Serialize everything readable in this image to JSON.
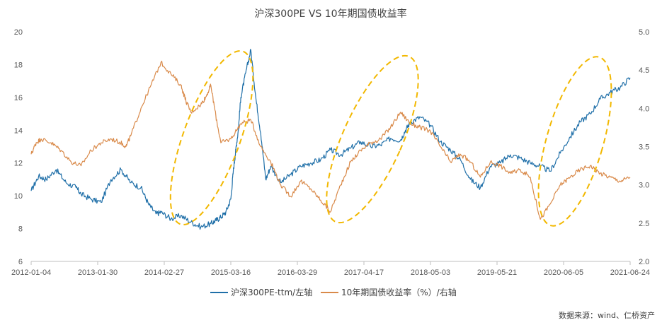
{
  "chart_data": {
    "type": "line",
    "title": "沪深300PE VS 10年期国债收益率",
    "source": "数据来源：wind、仁桥资产",
    "x_tick_labels": [
      "2012-01-04",
      "2013-01-30",
      "2014-02-27",
      "2015-03-16",
      "2016-03-29",
      "2017-04-17",
      "2018-05-03",
      "2019-05-21",
      "2020-06-05",
      "2021-06-24"
    ],
    "y_left": {
      "ticks": [
        6,
        8,
        10,
        12,
        14,
        16,
        18,
        20
      ],
      "ylim": [
        6,
        20
      ]
    },
    "y_right": {
      "ticks": [
        "2.0",
        "2.5",
        "3.0",
        "3.5",
        "4.0",
        "4.5",
        "5.0"
      ],
      "ylim": [
        2.0,
        5.0
      ]
    },
    "series": [
      {
        "name": "沪深300PE-ttm/左轴",
        "axis": "left",
        "color": "#1f6fa8",
        "x": [
          0.0,
          0.15,
          0.3,
          0.5,
          0.7,
          0.9,
          1.0,
          1.2,
          1.4,
          1.6,
          1.8,
          2.0,
          2.2,
          2.35,
          2.5,
          2.6,
          2.8,
          3.0,
          3.2,
          3.4,
          3.6,
          3.7,
          3.8,
          3.9,
          4.0,
          4.05,
          4.1,
          4.15,
          4.2,
          4.3,
          4.4,
          4.5,
          4.6,
          4.7,
          4.8,
          5.0,
          5.2,
          5.4,
          5.6,
          5.8,
          6.0,
          6.2,
          6.4,
          6.6,
          6.8,
          7.0,
          7.2,
          7.4,
          7.5,
          7.6,
          7.8,
          8.0,
          8.2,
          8.4,
          8.6,
          8.8,
          9.0,
          9.2,
          9.4,
          9.6,
          9.8,
          10.0,
          10.2,
          10.4,
          10.6,
          10.8,
          11.0,
          11.2,
          11.4,
          11.6,
          11.8,
          12.0
        ],
        "values": [
          10.3,
          11.2,
          11.0,
          11.6,
          10.8,
          10.5,
          10.1,
          9.8,
          9.6,
          11.0,
          11.6,
          10.8,
          10.5,
          9.5,
          8.9,
          9.0,
          8.6,
          8.8,
          8.4,
          8.1,
          8.3,
          8.5,
          8.7,
          9.0,
          9.8,
          11.5,
          12.8,
          14.0,
          16.0,
          17.5,
          18.9,
          16.0,
          13.8,
          11.0,
          11.8,
          10.8,
          11.3,
          11.8,
          12.0,
          12.2,
          12.8,
          12.5,
          12.9,
          13.3,
          13.0,
          13.1,
          13.5,
          13.4,
          14.0,
          14.5,
          14.8,
          14.3,
          13.3,
          12.8,
          12.2,
          11.0,
          10.5,
          11.8,
          12.0,
          12.5,
          12.3,
          12.0,
          11.8,
          11.5,
          12.6,
          13.6,
          14.5,
          15.0,
          15.9,
          16.3,
          16.6,
          17.2
        ]
      },
      {
        "name": "10年期国债收益率（%）/右轴",
        "axis": "right",
        "color": "#d98a4a",
        "x": [
          0.0,
          0.1,
          0.2,
          0.4,
          0.6,
          0.8,
          1.0,
          1.2,
          1.4,
          1.6,
          1.8,
          1.9,
          2.0,
          2.2,
          2.4,
          2.6,
          2.8,
          3.0,
          3.1,
          3.2,
          3.4,
          3.5,
          3.6,
          3.7,
          3.8,
          4.0,
          4.2,
          4.4,
          4.6,
          4.8,
          5.0,
          5.2,
          5.4,
          5.6,
          5.8,
          6.0,
          6.2,
          6.4,
          6.6,
          6.8,
          7.0,
          7.2,
          7.4,
          7.6,
          7.8,
          8.0,
          8.2,
          8.4,
          8.6,
          8.8,
          9.0,
          9.2,
          9.4,
          9.6,
          9.8,
          10.0,
          10.2,
          10.4,
          10.6,
          10.8,
          11.0,
          11.2,
          11.4,
          11.6,
          11.8,
          12.0
        ],
        "values": [
          3.4,
          3.55,
          3.6,
          3.55,
          3.45,
          3.3,
          3.25,
          3.45,
          3.55,
          3.6,
          3.55,
          3.5,
          3.65,
          4.0,
          4.3,
          4.6,
          4.45,
          4.3,
          4.1,
          3.95,
          4.05,
          4.15,
          4.3,
          3.9,
          3.55,
          3.6,
          3.8,
          3.85,
          3.5,
          3.3,
          3.0,
          2.85,
          3.05,
          2.95,
          2.8,
          2.65,
          3.0,
          3.3,
          3.45,
          3.55,
          3.6,
          3.75,
          3.95,
          3.8,
          3.75,
          3.7,
          3.5,
          3.3,
          3.4,
          3.3,
          3.1,
          3.3,
          3.25,
          3.15,
          3.2,
          3.1,
          2.55,
          2.75,
          3.0,
          3.1,
          3.2,
          3.25,
          3.15,
          3.1,
          3.05,
          3.1
        ]
      }
    ]
  }
}
